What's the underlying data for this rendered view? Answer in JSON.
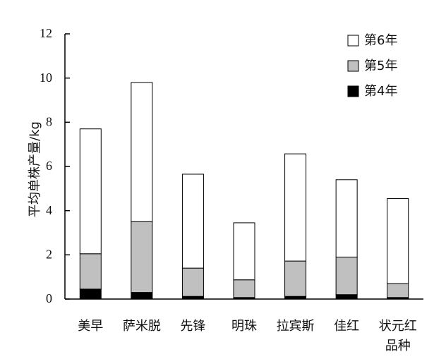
{
  "chart_data": {
    "type": "bar",
    "stacked": true,
    "categories": [
      "美早",
      "萨米脱",
      "先锋",
      "明珠",
      "拉宾斯",
      "佳红",
      "状元红品种"
    ],
    "category_lines": [
      [
        "美早"
      ],
      [
        "萨米脱"
      ],
      [
        "先锋"
      ],
      [
        "明珠"
      ],
      [
        "拉宾斯"
      ],
      [
        "佳红"
      ],
      [
        "状元红",
        "品种"
      ]
    ],
    "series": [
      {
        "name": "第4年",
        "color": "#000000",
        "values": [
          0.45,
          0.3,
          0.12,
          0.07,
          0.12,
          0.2,
          0.07
        ]
      },
      {
        "name": "第5年",
        "color": "#c0c0c0",
        "values": [
          1.6,
          3.2,
          1.28,
          0.8,
          1.6,
          1.7,
          0.63
        ]
      },
      {
        "name": "第6年",
        "color": "#ffffff",
        "values": [
          5.65,
          6.3,
          4.25,
          2.58,
          4.85,
          3.5,
          3.85
        ]
      }
    ],
    "ylabel": "平均单株产量/kg",
    "xlabel": "",
    "ylim": [
      0,
      12
    ],
    "yticks": [
      0,
      2,
      4,
      6,
      8,
      10,
      12
    ],
    "legend_position": "top-right",
    "grid": false
  }
}
